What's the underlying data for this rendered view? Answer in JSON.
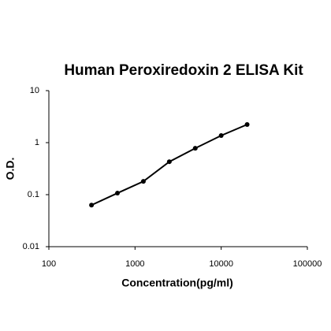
{
  "chart_data": {
    "type": "scatter",
    "title": "Human Peroxiredoxin 2 ELISA Kit",
    "x_label": "Concentration(pg/ml)",
    "y_label": "O.D.",
    "x": [
      312.5,
      625,
      1250,
      2500,
      5000,
      10000,
      20000
    ],
    "values": [
      0.063,
      0.107,
      0.18,
      0.43,
      0.78,
      1.37,
      2.23
    ],
    "color": "#000000",
    "line": true,
    "xscale": "log",
    "yscale": "log",
    "xlim": [
      100,
      100000
    ],
    "xticks": [
      100,
      1000,
      10000,
      100000
    ],
    "ylim": [
      0.01,
      10
    ],
    "yticks": [
      0.01,
      0.1,
      1,
      10
    ]
  }
}
